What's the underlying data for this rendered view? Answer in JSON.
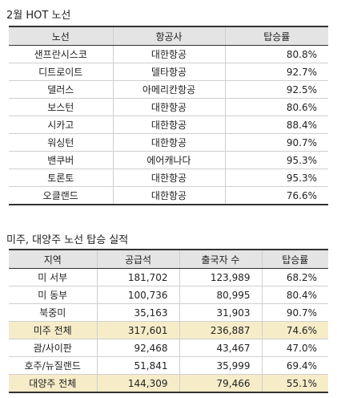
{
  "table1": {
    "title": "2월 HOT 노선",
    "headers": [
      "노선",
      "항공사",
      "탑승률"
    ],
    "rows": [
      [
        "샌프란시스코",
        "대한항공",
        "80.8%"
      ],
      [
        "디트로이트",
        "델타항공",
        "92.7%"
      ],
      [
        "댈러스",
        "아메리칸항공",
        "92.5%"
      ],
      [
        "보스턴",
        "대한항공",
        "80.6%"
      ],
      [
        "시카고",
        "대한항공",
        "88.4%"
      ],
      [
        "워싱턴",
        "대한항공",
        "90.7%"
      ],
      [
        "밴쿠버",
        "에어캐나다",
        "95.3%"
      ],
      [
        "토론토",
        "대한항공",
        "95.3%"
      ],
      [
        "오클랜드",
        "대한항공",
        "76.6%"
      ]
    ]
  },
  "table2": {
    "title": "미주, 대양주 노선 탑승 실적",
    "headers": [
      "지역",
      "공급석",
      "출국자 수",
      "탑승률"
    ],
    "rows": [
      {
        "cells": [
          "미 서부",
          "181,702",
          "123,989",
          "68.2%"
        ],
        "total": false
      },
      {
        "cells": [
          "미 동부",
          "100,736",
          "80,995",
          "80.4%"
        ],
        "total": false
      },
      {
        "cells": [
          "북중미",
          "35,163",
          "31,903",
          "90.7%"
        ],
        "total": false
      },
      {
        "cells": [
          "미주 전체",
          "317,601",
          "236,887",
          "74.6%"
        ],
        "total": true
      },
      {
        "cells": [
          "괌/사이판",
          "92,468",
          "43,467",
          "47.0%"
        ],
        "total": false
      },
      {
        "cells": [
          "호주/뉴질랜드",
          "51,841",
          "35,999",
          "69.4%"
        ],
        "total": false
      },
      {
        "cells": [
          "대양주 전체",
          "144,309",
          "79,466",
          "55.1%"
        ],
        "total": true
      }
    ]
  }
}
